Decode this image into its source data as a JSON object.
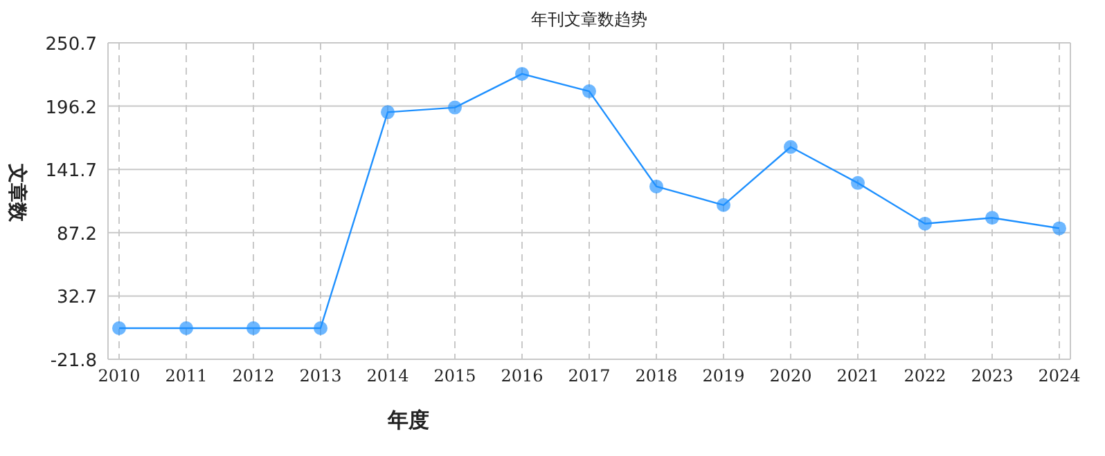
{
  "chart_data": {
    "type": "line",
    "title": "年刊文章数趋势",
    "xlabel": "年度",
    "ylabel": "文章数",
    "categories": [
      "2010",
      "2011",
      "2012",
      "2013",
      "2014",
      "2015",
      "2016",
      "2017",
      "2018",
      "2019",
      "2020",
      "2021",
      "2022",
      "2023",
      "2024"
    ],
    "series": [
      {
        "color": "#1e90ff",
        "values": [
          5,
          5,
          5,
          5,
          191,
          195,
          224,
          209,
          127,
          111,
          161,
          130,
          95,
          100,
          91
        ]
      }
    ],
    "ylim": [
      -21.8,
      250.7
    ],
    "yticks": [
      -21.8,
      32.7,
      87.2,
      141.7,
      196.2,
      250.7
    ],
    "grid": true,
    "marker": "circle"
  }
}
